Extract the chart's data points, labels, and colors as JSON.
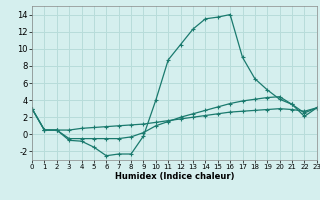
{
  "xlabel": "Humidex (Indice chaleur)",
  "bg_color": "#d5efee",
  "grid_color": "#b8dcda",
  "line_color": "#1a7a6e",
  "xlim": [
    0,
    23
  ],
  "ylim": [
    -3,
    15
  ],
  "xticks": [
    0,
    1,
    2,
    3,
    4,
    5,
    6,
    7,
    8,
    9,
    10,
    11,
    12,
    13,
    14,
    15,
    16,
    17,
    18,
    19,
    20,
    21,
    22,
    23
  ],
  "yticks": [
    -2,
    0,
    2,
    4,
    6,
    8,
    10,
    12,
    14
  ],
  "series1_x": [
    0,
    1,
    2,
    3,
    4,
    5,
    6,
    7,
    8,
    9,
    10,
    11,
    12,
    13,
    14,
    15,
    16,
    17,
    18,
    19,
    20,
    21,
    22,
    23
  ],
  "series1_y": [
    3.0,
    0.5,
    0.5,
    -0.7,
    -0.8,
    -1.5,
    -2.5,
    -2.3,
    -2.3,
    -0.2,
    4.0,
    8.7,
    10.5,
    12.3,
    13.5,
    13.7,
    14.0,
    9.0,
    6.5,
    5.2,
    4.1,
    3.5,
    2.1,
    3.1
  ],
  "series2_x": [
    0,
    1,
    2,
    3,
    4,
    5,
    6,
    7,
    8,
    9,
    10,
    11,
    12,
    13,
    14,
    15,
    16,
    17,
    18,
    19,
    20,
    21,
    22,
    23
  ],
  "series2_y": [
    3.0,
    0.5,
    0.5,
    -0.5,
    -0.5,
    -0.5,
    -0.5,
    -0.5,
    -0.3,
    0.2,
    1.0,
    1.5,
    2.0,
    2.4,
    2.8,
    3.2,
    3.6,
    3.9,
    4.1,
    4.3,
    4.4,
    3.5,
    2.5,
    3.1
  ],
  "series3_x": [
    0,
    1,
    2,
    3,
    4,
    5,
    6,
    7,
    8,
    9,
    10,
    11,
    12,
    13,
    14,
    15,
    16,
    17,
    18,
    19,
    20,
    21,
    22,
    23
  ],
  "series3_y": [
    3.0,
    0.5,
    0.5,
    0.5,
    0.7,
    0.8,
    0.9,
    1.0,
    1.1,
    1.2,
    1.4,
    1.6,
    1.8,
    2.0,
    2.2,
    2.4,
    2.6,
    2.7,
    2.8,
    2.9,
    3.0,
    2.9,
    2.7,
    3.1
  ]
}
